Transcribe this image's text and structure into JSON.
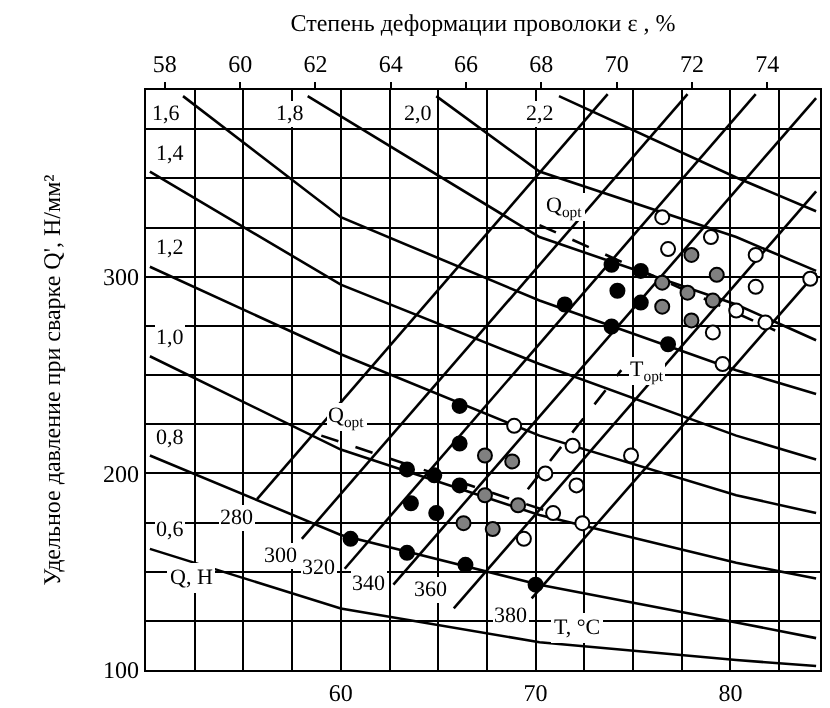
{
  "chart_data": {
    "type": "line",
    "ylabel": "Удельное давление при сварке Q', Н/мм²",
    "x2label": "Степень деформации проволоки ε , %",
    "xlim": [
      50,
      84.6
    ],
    "ylim": [
      100,
      395
    ],
    "x2lim": [
      57.5,
      75.4
    ],
    "xticks": [
      {
        "value": 52.5,
        "label": null
      },
      {
        "value": 55,
        "label": null
      },
      {
        "value": 57.5,
        "label": null
      },
      60,
      {
        "value": 62.5,
        "label": null
      },
      {
        "value": 65,
        "label": null
      },
      {
        "value": 67.5,
        "label": null
      },
      70,
      {
        "value": 72.5,
        "label": null
      },
      {
        "value": 75,
        "label": null
      },
      {
        "value": 77.5,
        "label": null
      },
      80,
      {
        "value": 82.5,
        "label": null
      }
    ],
    "yticks": [
      100,
      {
        "value": 125,
        "label": null
      },
      {
        "value": 150,
        "label": null
      },
      {
        "value": 175,
        "label": null
      },
      200,
      {
        "value": 225,
        "label": null
      },
      {
        "value": 250,
        "label": null
      },
      {
        "value": 275,
        "label": null
      },
      300,
      {
        "value": 325,
        "label": null
      },
      {
        "value": 350,
        "label": null
      },
      {
        "value": 375,
        "label": null
      }
    ],
    "x2ticks": [
      58,
      60,
      62,
      64,
      66,
      68,
      70,
      72,
      74
    ],
    "grid": true,
    "line_style": "solid",
    "annotations": [
      "Q, Н",
      "T, °C"
    ],
    "series": [
      {
        "name": "0,6",
        "color": "#000000",
        "x": [
          50.2,
          60,
          70.2,
          80.3,
          84.4
        ],
        "values": [
          161.6,
          131.3,
          114.1,
          105.1,
          102.0
        ]
      },
      {
        "name": "0,8",
        "color": "#000000",
        "x": [
          50.2,
          60,
          70.2,
          80.3,
          84.4
        ],
        "values": [
          209.1,
          168.7,
          143.4,
          124.2,
          116.2
        ]
      },
      {
        "name": "1,0",
        "color": "#000000",
        "x": [
          50.2,
          60,
          70.2,
          80.3,
          84.4
        ],
        "values": [
          259.6,
          212.1,
          178.8,
          154.5,
          146.5
        ]
      },
      {
        "name": "1,2",
        "color": "#000000",
        "x": [
          50.2,
          60,
          70.2,
          80.3,
          84.4
        ],
        "values": [
          305.1,
          260.6,
          219.2,
          188.9,
          179.8
        ]
      },
      {
        "name": "1,4",
        "color": "#000000",
        "x": [
          50.2,
          60,
          70.2,
          80.3,
          84.4
        ],
        "values": [
          353.5,
          296.0,
          255.6,
          219.2,
          207.1
        ]
      },
      {
        "name": "1,6",
        "color": "#000000",
        "x": [
          51.9,
          60,
          70.2,
          80.3,
          84.4
        ],
        "values": [
          391.9,
          330.3,
          287.9,
          252.5,
          240.4
        ]
      },
      {
        "name": "1,8",
        "color": "#000000",
        "x": [
          58.3,
          70.2,
          80.3,
          84.4
        ],
        "values": [
          391.9,
          320.2,
          285.9,
          267.7
        ]
      },
      {
        "name": "2,0",
        "color": "#000000",
        "x": [
          64.9,
          70.2,
          80.3,
          84.4
        ],
        "values": [
          391.9,
          353.5,
          320.2,
          303.0
        ]
      },
      {
        "name": "2,2",
        "color": "#000000",
        "x": [
          71.2,
          80.3,
          84.4
        ],
        "values": [
          391.9,
          350.5,
          333.3
        ]
      },
      {
        "name": "280",
        "color": "#000000",
        "x": [
          55.7,
          73.7
        ],
        "values": [
          186.9,
          392.9
        ]
      },
      {
        "name": "300",
        "color": "#000000",
        "x": [
          58.0,
          77.8
        ],
        "values": [
          166.7,
          392.9
        ]
      },
      {
        "name": "320",
        "color": "#000000",
        "x": [
          60.2,
          81.3
        ],
        "values": [
          151.5,
          392.9
        ]
      },
      {
        "name": "340",
        "color": "#000000",
        "x": [
          62.7,
          84.4
        ],
        "values": [
          143.4,
          390.9
        ]
      },
      {
        "name": "360",
        "color": "#000000",
        "x": [
          65.8,
          84.4
        ],
        "values": [
          131.3,
          343.4
        ]
      },
      {
        "name": "380",
        "color": "#000000",
        "x": [
          69.8,
          84.4
        ],
        "values": [
          136.4,
          302.0
        ]
      },
      {
        "name": "Q$_{opt}$",
        "color": "#000000",
        "line_style": "dashed",
        "x": [
          59.0,
          71.2
        ],
        "values": [
          219.2,
          178.8
        ]
      },
      {
        "name": "Q$_{opt}$",
        "color": "#000000",
        "line_style": "dashed",
        "x": [
          70.2,
          82.3
        ],
        "values": [
          326.3,
          272.7
        ]
      },
      {
        "name": "T$_{opt}$",
        "color": "#000000",
        "line_style": "dashed",
        "x": [
          69.6,
          74.4
        ],
        "values": [
          191.9,
          252.5
        ]
      },
      {
        "type": "scatter",
        "marker": "circle",
        "color": "#000000",
        "x": [
          66.1,
          66.1,
          63.4,
          64.8,
          66.1,
          63.6,
          64.9,
          60.5,
          63.4,
          66.4,
          70.0,
          71.5,
          73.9,
          75.4,
          74.2,
          75.4,
          73.9,
          76.8
        ],
        "values": [
          234.3,
          215.2,
          202.0,
          199.0,
          193.9,
          184.8,
          179.8,
          166.7,
          159.6,
          153.5,
          143.4,
          285.9,
          306.1,
          303.0,
          292.9,
          286.9,
          274.7,
          265.7
        ]
      },
      {
        "type": "scatter",
        "marker": "circle",
        "color": "#808080",
        "x": [
          66.3,
          67.4,
          68.8,
          67.4,
          69.1,
          67.8,
          78.0,
          76.5,
          77.8,
          79.3,
          79.1,
          76.5,
          78.0
        ],
        "values": [
          174.7,
          209.1,
          206.1,
          188.9,
          183.8,
          171.7,
          311.1,
          297.0,
          291.9,
          301.0,
          287.9,
          284.8,
          277.8
        ]
      },
      {
        "type": "scatter",
        "marker": "circle",
        "color": "#ffffff",
        "x": [
          76.5,
          76.8,
          79.0,
          81.3,
          81.3,
          84.1,
          80.3,
          81.8,
          79.1,
          79.6,
          68.9,
          71.9,
          74.9,
          70.5,
          72.1,
          70.9,
          72.4,
          69.4
        ],
        "values": [
          330.3,
          314.1,
          320.2,
          311.1,
          294.9,
          299.0,
          282.8,
          276.8,
          271.7,
          255.6,
          224.2,
          214.1,
          209.1,
          200.0,
          193.9,
          179.8,
          174.7,
          166.7
        ]
      }
    ]
  }
}
